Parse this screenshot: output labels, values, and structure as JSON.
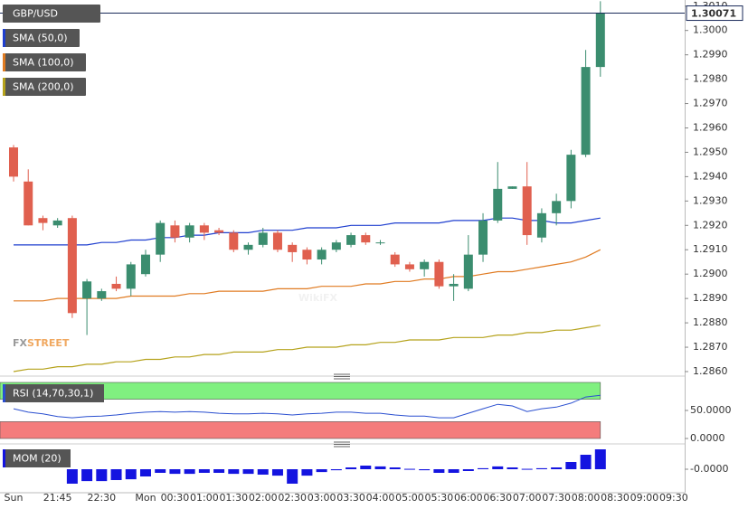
{
  "chart_data": {
    "type": "candlestick",
    "symbol": "GBP/USD",
    "up_color": "#3b8d6f",
    "down_color": "#e0604f",
    "categories": [
      "Sun",
      null,
      null,
      "21:45",
      null,
      null,
      "22:30",
      null,
      null,
      "Mon",
      null,
      "00:30",
      null,
      "01:00",
      null,
      "01:30",
      null,
      "02:00",
      null,
      "02:30",
      null,
      "03:00",
      null,
      "03:30",
      null,
      "04:00",
      null,
      "05:00",
      null,
      "05:30",
      null,
      "06:00",
      null,
      "06:30",
      null,
      "07:00",
      null,
      "07:30",
      null,
      "08:00",
      null,
      "08:30",
      null,
      "09:00",
      null,
      "09:30"
    ],
    "open": [
      1.2952,
      1.2938,
      1.2923,
      1.292,
      1.2923,
      1.289,
      1.289,
      1.2896,
      1.2894,
      1.29,
      1.2908,
      1.292,
      1.2915,
      1.292,
      1.2918,
      1.2917,
      1.291,
      1.2912,
      1.2917,
      1.2912,
      1.291,
      1.2906,
      1.291,
      1.2912,
      1.2916,
      1.2913,
      1.2908,
      1.2904,
      1.2902,
      1.2905,
      1.2895,
      1.2894,
      1.2908,
      1.2922,
      1.2935,
      1.2936,
      1.2915,
      1.2925,
      1.293,
      1.2949,
      1.2985,
      null,
      null,
      null,
      null,
      null
    ],
    "high": [
      1.2953,
      1.2943,
      1.2924,
      1.2923,
      1.2924,
      1.2898,
      1.2894,
      1.2899,
      1.2905,
      1.291,
      1.2922,
      1.2922,
      1.2921,
      1.2921,
      1.2919,
      1.2918,
      1.2913,
      1.2919,
      1.2918,
      1.2913,
      1.2911,
      1.2911,
      1.2914,
      1.2917,
      1.2917,
      1.2914,
      1.2909,
      1.2905,
      1.2906,
      1.2906,
      1.29,
      1.2916,
      1.2925,
      1.2946,
      1.2936,
      1.2946,
      1.2927,
      1.2933,
      1.2951,
      1.2992,
      1.3012,
      null,
      null,
      null,
      null,
      null
    ],
    "low": [
      1.2938,
      1.292,
      1.2918,
      1.2919,
      1.2882,
      1.2875,
      1.2889,
      1.2893,
      1.2891,
      1.2899,
      1.2905,
      1.2913,
      1.2913,
      1.2914,
      1.2916,
      1.2909,
      1.2908,
      1.2911,
      1.2909,
      1.2905,
      1.2904,
      1.2904,
      1.2909,
      1.2911,
      1.2912,
      1.2912,
      1.2903,
      1.2901,
      1.2899,
      1.2894,
      1.2889,
      1.2893,
      1.2905,
      1.2921,
      1.2935,
      1.2912,
      1.2913,
      1.292,
      1.2927,
      1.2948,
      1.2981,
      null,
      null,
      null,
      null,
      null
    ],
    "close": [
      1.294,
      1.292,
      1.2921,
      1.2922,
      1.2884,
      1.2897,
      1.2893,
      1.2894,
      1.2904,
      1.2908,
      1.2921,
      1.2915,
      1.292,
      1.2917,
      1.2917,
      1.291,
      1.2912,
      1.2917,
      1.291,
      1.2909,
      1.2906,
      1.291,
      1.2913,
      1.2916,
      1.2913,
      1.2913,
      1.2904,
      1.2902,
      1.2905,
      1.2895,
      1.2896,
      1.2908,
      1.2922,
      1.2935,
      1.2936,
      1.2916,
      1.2925,
      1.293,
      1.2949,
      1.2985,
      1.30071,
      null,
      null,
      null,
      null,
      null
    ],
    "last_price": 1.30071,
    "last_price_color": "#1a2a5a",
    "overlays": [
      {
        "name": "SMA (50,0)",
        "color": "#1f3fcf",
        "values": [
          1.2912,
          1.2912,
          1.2912,
          1.2912,
          1.2912,
          1.2912,
          1.2913,
          1.2913,
          1.2914,
          1.2914,
          1.2915,
          1.2915,
          1.2916,
          1.2916,
          1.2917,
          1.2917,
          1.2917,
          1.2918,
          1.2918,
          1.2918,
          1.2919,
          1.2919,
          1.2919,
          1.292,
          1.292,
          1.292,
          1.2921,
          1.2921,
          1.2921,
          1.2921,
          1.2922,
          1.2922,
          1.2922,
          1.2923,
          1.2923,
          1.2922,
          1.2922,
          1.2921,
          1.2921,
          1.2922,
          1.2923,
          null,
          null,
          null,
          null,
          null
        ]
      },
      {
        "name": "SMA (100,0)",
        "color": "#e07b22",
        "values": [
          1.2889,
          1.2889,
          1.2889,
          1.289,
          1.289,
          1.289,
          1.289,
          1.289,
          1.2891,
          1.2891,
          1.2891,
          1.2891,
          1.2892,
          1.2892,
          1.2893,
          1.2893,
          1.2893,
          1.2893,
          1.2894,
          1.2894,
          1.2894,
          1.2895,
          1.2895,
          1.2895,
          1.2896,
          1.2896,
          1.2897,
          1.2897,
          1.2898,
          1.2898,
          1.2899,
          1.2899,
          1.29,
          1.2901,
          1.2901,
          1.2902,
          1.2903,
          1.2904,
          1.2905,
          1.2907,
          1.291,
          null,
          null,
          null,
          null,
          null
        ]
      },
      {
        "name": "SMA (200,0)",
        "color": "#b5a21b",
        "values": [
          1.286,
          1.2861,
          1.2861,
          1.2862,
          1.2862,
          1.2863,
          1.2863,
          1.2864,
          1.2864,
          1.2865,
          1.2865,
          1.2866,
          1.2866,
          1.2867,
          1.2867,
          1.2868,
          1.2868,
          1.2868,
          1.2869,
          1.2869,
          1.287,
          1.287,
          1.287,
          1.2871,
          1.2871,
          1.2872,
          1.2872,
          1.2873,
          1.2873,
          1.2873,
          1.2874,
          1.2874,
          1.2874,
          1.2875,
          1.2875,
          1.2876,
          1.2876,
          1.2877,
          1.2877,
          1.2878,
          1.2879,
          null,
          null,
          null,
          null,
          null
        ]
      }
    ],
    "ylim": [
      1.286,
      1.30125
    ],
    "yticks": [
      {
        "value": 1.286,
        "label": "1.2860"
      },
      {
        "value": 1.287,
        "label": "1.2870"
      },
      {
        "value": 1.288,
        "label": "1.2880"
      },
      {
        "value": 1.289,
        "label": "1.2890"
      },
      {
        "value": 1.29,
        "label": "1.2900"
      },
      {
        "value": 1.291,
        "label": "1.2910"
      },
      {
        "value": 1.292,
        "label": "1.2920"
      },
      {
        "value": 1.293,
        "label": "1.2930"
      },
      {
        "value": 1.294,
        "label": "1.2940"
      },
      {
        "value": 1.295,
        "label": "1.2950"
      },
      {
        "value": 1.296,
        "label": "1.2960"
      },
      {
        "value": 1.297,
        "label": "1.2970"
      },
      {
        "value": 1.298,
        "label": "1.2980"
      },
      {
        "value": 1.299,
        "label": "1.2990"
      },
      {
        "value": 1.3,
        "label": "1.3000"
      },
      {
        "value": 1.301,
        "label": "1.3010"
      }
    ],
    "indicators": [
      {
        "type": "line",
        "name": "RSI (14,70,30,1)",
        "color": "#2a4fd0",
        "values": [
          53,
          47,
          44,
          39,
          37,
          39,
          40,
          42,
          45,
          47,
          48,
          47,
          48,
          47,
          45,
          44,
          44,
          45,
          44,
          42,
          44,
          45,
          47,
          47,
          45,
          45,
          42,
          40,
          40,
          37,
          37,
          45,
          53,
          61,
          58,
          48,
          53,
          56,
          63,
          74,
          77,
          null,
          null,
          null,
          null,
          null
        ],
        "ylim": [
          0,
          100
        ],
        "yticks": [
          {
            "value": 50,
            "label": "50.0000"
          },
          {
            "value": 0,
            "label": "0.0000"
          }
        ],
        "bands": [
          {
            "from": 70,
            "to": 100,
            "color": "#80f080"
          },
          {
            "from": 0,
            "to": 30,
            "color": "#f47c7c"
          }
        ]
      },
      {
        "type": "bar",
        "name": "MOM (20)",
        "color": "#1414e0",
        "values": [
          null,
          null,
          null,
          null,
          -0.0072,
          -0.0059,
          -0.0059,
          -0.0054,
          -0.005,
          -0.0036,
          -0.0018,
          -0.0023,
          -0.0023,
          -0.0018,
          -0.0018,
          -0.0023,
          -0.0023,
          -0.0027,
          -0.0032,
          -0.0072,
          -0.0032,
          -0.0014,
          -0.0005,
          0.0009,
          0.0018,
          0.0014,
          0.0009,
          0.0002,
          -0.0005,
          -0.0018,
          -0.0018,
          -0.0009,
          0.0005,
          0.0014,
          0.0009,
          0.0002,
          0.0005,
          0.0009,
          0.0036,
          0.0072,
          0.0099,
          null,
          null,
          null,
          null,
          null
        ],
        "ylim": [
          -0.0117,
          0.0108
        ],
        "yticks": [
          {
            "value": 0,
            "label": "-0.0000"
          }
        ]
      }
    ],
    "watermarks": {
      "brand_fx": "FX",
      "brand_street": "STREET",
      "wikifx": "WikiFX"
    }
  }
}
